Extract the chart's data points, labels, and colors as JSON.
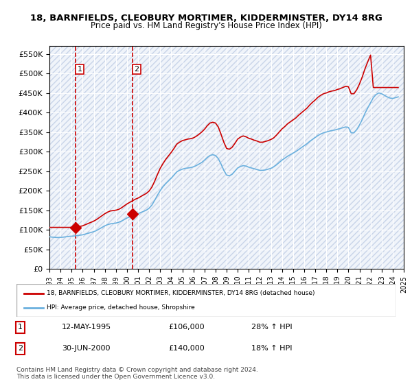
{
  "title": "18, BARNFIELDS, CLEOBURY MORTIMER, KIDDERMINSTER, DY14 8RG",
  "subtitle": "Price paid vs. HM Land Registry's House Price Index (HPI)",
  "ylim": [
    0,
    570000
  ],
  "yticks": [
    0,
    50000,
    100000,
    150000,
    200000,
    250000,
    300000,
    350000,
    400000,
    450000,
    500000,
    550000
  ],
  "xlabel": "",
  "ylabel": "",
  "hpi_color": "#6ab0de",
  "price_color": "#cc0000",
  "marker_color": "#cc0000",
  "transaction1_date": "12-MAY-1995",
  "transaction1_price": 106000,
  "transaction1_hpi_pct": "28%",
  "transaction2_date": "30-JUN-2000",
  "transaction2_price": 140000,
  "transaction2_hpi_pct": "18%",
  "legend_label1": "18, BARNFIELDS, CLEOBURY MORTIMER, KIDDERMINSTER, DY14 8RG (detached house)",
  "legend_label2": "HPI: Average price, detached house, Shropshire",
  "footnote": "Contains HM Land Registry data © Crown copyright and database right 2024.\nThis data is licensed under the Open Government Licence v3.0.",
  "bg_color": "#f0f4fa",
  "hatch_color": "#c8d4e8",
  "grid_color": "#ffffff",
  "hpi_data": {
    "dates": [
      1993.0,
      1993.25,
      1993.5,
      1993.75,
      1994.0,
      1994.25,
      1994.5,
      1994.75,
      1995.0,
      1995.25,
      1995.5,
      1995.75,
      1996.0,
      1996.25,
      1996.5,
      1996.75,
      1997.0,
      1997.25,
      1997.5,
      1997.75,
      1998.0,
      1998.25,
      1998.5,
      1998.75,
      1999.0,
      1999.25,
      1999.5,
      1999.75,
      2000.0,
      2000.25,
      2000.5,
      2000.75,
      2001.0,
      2001.25,
      2001.5,
      2001.75,
      2002.0,
      2002.25,
      2002.5,
      2002.75,
      2003.0,
      2003.25,
      2003.5,
      2003.75,
      2004.0,
      2004.25,
      2004.5,
      2004.75,
      2005.0,
      2005.25,
      2005.5,
      2005.75,
      2006.0,
      2006.25,
      2006.5,
      2006.75,
      2007.0,
      2007.25,
      2007.5,
      2007.75,
      2008.0,
      2008.25,
      2008.5,
      2008.75,
      2009.0,
      2009.25,
      2009.5,
      2009.75,
      2010.0,
      2010.25,
      2010.5,
      2010.75,
      2011.0,
      2011.25,
      2011.5,
      2011.75,
      2012.0,
      2012.25,
      2012.5,
      2012.75,
      2013.0,
      2013.25,
      2013.5,
      2013.75,
      2014.0,
      2014.25,
      2014.5,
      2014.75,
      2015.0,
      2015.25,
      2015.5,
      2015.75,
      2016.0,
      2016.25,
      2016.5,
      2016.75,
      2017.0,
      2017.25,
      2017.5,
      2017.75,
      2018.0,
      2018.25,
      2018.5,
      2018.75,
      2019.0,
      2019.25,
      2019.5,
      2019.75,
      2020.0,
      2020.25,
      2020.5,
      2020.75,
      2021.0,
      2021.25,
      2021.5,
      2021.75,
      2022.0,
      2022.25,
      2022.5,
      2022.75,
      2023.0,
      2023.25,
      2023.5,
      2023.75,
      2024.0,
      2024.25,
      2024.5
    ],
    "values": [
      82000,
      81000,
      80500,
      80000,
      80500,
      81000,
      82000,
      83000,
      83500,
      84000,
      85000,
      86000,
      87000,
      89000,
      91000,
      93000,
      95000,
      98000,
      102000,
      106000,
      110000,
      113000,
      115000,
      116000,
      117000,
      119000,
      122000,
      126000,
      130000,
      133000,
      136000,
      139000,
      141000,
      144000,
      147000,
      150000,
      155000,
      163000,
      175000,
      188000,
      200000,
      210000,
      218000,
      225000,
      232000,
      240000,
      248000,
      252000,
      255000,
      257000,
      258000,
      259000,
      261000,
      264000,
      268000,
      272000,
      278000,
      285000,
      290000,
      292000,
      290000,
      282000,
      268000,
      252000,
      240000,
      238000,
      242000,
      250000,
      258000,
      262000,
      264000,
      263000,
      260000,
      258000,
      256000,
      254000,
      252000,
      252000,
      253000,
      255000,
      257000,
      261000,
      266000,
      272000,
      278000,
      283000,
      288000,
      292000,
      296000,
      300000,
      305000,
      310000,
      315000,
      320000,
      326000,
      331000,
      336000,
      341000,
      345000,
      348000,
      350000,
      352000,
      354000,
      355000,
      357000,
      359000,
      361000,
      363000,
      362000,
      348000,
      348000,
      356000,
      368000,
      382000,
      398000,
      412000,
      425000,
      438000,
      446000,
      450000,
      448000,
      444000,
      440000,
      437000,
      436000,
      438000,
      440000
    ]
  },
  "price_data": {
    "dates": [
      1993.0,
      1993.25,
      1993.5,
      1993.75,
      1994.0,
      1994.25,
      1994.5,
      1994.75,
      1995.0,
      1995.25,
      1995.5,
      1995.75,
      1996.0,
      1996.25,
      1996.5,
      1996.75,
      1997.0,
      1997.25,
      1997.5,
      1997.75,
      1998.0,
      1998.25,
      1998.5,
      1998.75,
      1999.0,
      1999.25,
      1999.5,
      1999.75,
      2000.0,
      2000.25,
      2000.5,
      2000.75,
      2001.0,
      2001.25,
      2001.5,
      2001.75,
      2002.0,
      2002.25,
      2002.5,
      2002.75,
      2003.0,
      2003.25,
      2003.5,
      2003.75,
      2004.0,
      2004.25,
      2004.5,
      2004.75,
      2005.0,
      2005.25,
      2005.5,
      2005.75,
      2006.0,
      2006.25,
      2006.5,
      2006.75,
      2007.0,
      2007.25,
      2007.5,
      2007.75,
      2008.0,
      2008.25,
      2008.5,
      2008.75,
      2009.0,
      2009.25,
      2009.5,
      2009.75,
      2010.0,
      2010.25,
      2010.5,
      2010.75,
      2011.0,
      2011.25,
      2011.5,
      2011.75,
      2012.0,
      2012.25,
      2012.5,
      2012.75,
      2013.0,
      2013.25,
      2013.5,
      2013.75,
      2014.0,
      2014.25,
      2014.5,
      2014.75,
      2015.0,
      2015.25,
      2015.5,
      2015.75,
      2016.0,
      2016.25,
      2016.5,
      2016.75,
      2017.0,
      2017.25,
      2017.5,
      2017.75,
      2018.0,
      2018.25,
      2018.5,
      2018.75,
      2019.0,
      2019.25,
      2019.5,
      2019.75,
      2020.0,
      2020.25,
      2020.5,
      2020.75,
      2021.0,
      2021.25,
      2021.5,
      2021.75,
      2022.0,
      2022.25,
      2022.5,
      2022.75,
      2023.0,
      2023.25,
      2023.5,
      2023.75,
      2024.0,
      2024.25,
      2024.5
    ],
    "values": [
      106000,
      106000,
      106000,
      106000,
      106000,
      106000,
      106000,
      106000,
      106000,
      106000,
      107000,
      108500,
      110000,
      113000,
      116000,
      119000,
      122000,
      126000,
      131000,
      136000,
      141000,
      145000,
      148000,
      149000,
      150000,
      152000,
      156000,
      161000,
      166000,
      170000,
      174000,
      178000,
      181000,
      185000,
      189000,
      193000,
      199000,
      209000,
      224000,
      241000,
      257000,
      269000,
      280000,
      289000,
      298000,
      308000,
      319000,
      324000,
      328000,
      330000,
      332000,
      333000,
      335000,
      339000,
      344000,
      350000,
      357000,
      366000,
      373000,
      375000,
      373000,
      363000,
      344000,
      324000,
      308000,
      306000,
      311000,
      321000,
      332000,
      337000,
      340000,
      338000,
      334000,
      332000,
      329000,
      327000,
      324000,
      324000,
      326000,
      328000,
      331000,
      335000,
      342000,
      350000,
      358000,
      364000,
      371000,
      376000,
      381000,
      386000,
      393000,
      399000,
      405000,
      411000,
      419000,
      426000,
      432000,
      439000,
      444000,
      448000,
      450000,
      453000,
      455000,
      456000,
      459000,
      461000,
      464000,
      467000,
      466000,
      448000,
      448000,
      458000,
      473000,
      491000,
      512000,
      530000,
      547000,
      464000,
      464000,
      464000,
      464000,
      464000,
      464000,
      464000,
      464000,
      464000,
      464000
    ]
  }
}
